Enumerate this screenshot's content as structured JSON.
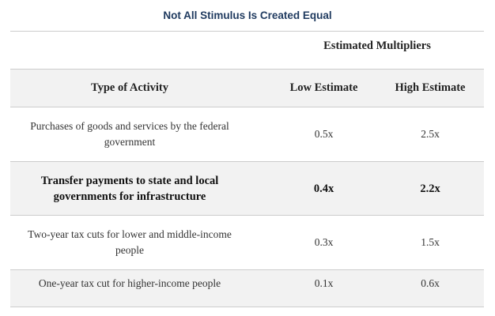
{
  "title": "Not All Stimulus Is Created Equal",
  "group_header": "Estimated Multipliers",
  "columns": [
    "Type of Activity",
    "Low Estimate",
    "High Estimate"
  ],
  "rows": [
    {
      "activity": "Purchases of goods and services by the federal government",
      "low": "0.5x",
      "high": "2.5x",
      "bold": false
    },
    {
      "activity": "Transfer payments to state and local governments for infrastructure",
      "low": "0.4x",
      "high": "2.2x",
      "bold": true
    },
    {
      "activity": "Two-year tax cuts for lower and middle-income people",
      "low": "0.3x",
      "high": "1.5x",
      "bold": false
    },
    {
      "activity": "One-year tax cut for higher-income people",
      "low": "0.1x",
      "high": "0.6x",
      "bold": false
    }
  ],
  "colors": {
    "title": "#1f3a5f",
    "band": "#f2f2f2",
    "rule": "#cccccc"
  }
}
